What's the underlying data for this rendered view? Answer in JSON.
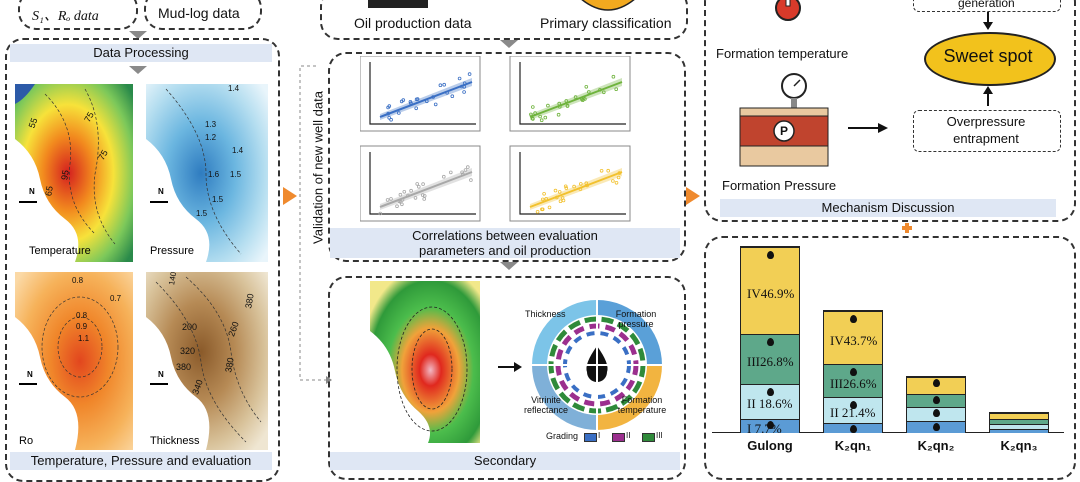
{
  "left_column": {
    "top_boxes": [
      "S₁、Rₒ data",
      "Mud-log data"
    ],
    "processing_label": "Data Processing",
    "maps": [
      {
        "id": "temperature",
        "label": "Temperature",
        "contour_labels": [
          "55",
          "75",
          "75",
          "65",
          "95"
        ]
      },
      {
        "id": "pressure",
        "label": "Pressure",
        "contour_labels": [
          "1.4",
          "1.3",
          "1.2",
          "1.4",
          "1.6",
          "1.5",
          "1.5",
          "1.5"
        ]
      },
      {
        "id": "ro",
        "label": "Ro",
        "contour_labels": [
          "0.8",
          "0.7",
          "0.8",
          "0.9",
          "1.1"
        ]
      },
      {
        "id": "thickness",
        "label": "Thickness",
        "contour_labels": [
          "140",
          "200",
          "260",
          "320",
          "380",
          "380",
          "340",
          "380"
        ]
      }
    ],
    "bottom_caption": "Temperature, Pressure and evaluation"
  },
  "validation_label": "Validation of new well data",
  "middle_column": {
    "top_labels": [
      "Oil production data",
      "Primary classification"
    ],
    "correlation_caption": [
      "Correlations between evaluation",
      "parameters and oil production"
    ],
    "panel_colors": [
      "#3a6fc4",
      "#6fb33d",
      "#a8a8a8",
      "#f2c12e"
    ],
    "wheel": {
      "labels": [
        "Thickness",
        "Formation pressure",
        "Vitrinite reflectance",
        "Formation temperature"
      ],
      "grading_label": "Grading",
      "grades": [
        {
          "label": "I",
          "color": "#3a6fc4"
        },
        {
          "label": "II",
          "color": "#9b2f8e"
        },
        {
          "label": "III",
          "color": "#2f8a3a"
        }
      ]
    },
    "bottom_caption": "Secondary"
  },
  "right_column": {
    "mechanism": {
      "formation_temperature": "Formation temperature",
      "formation_pressure": "Formation Pressure",
      "pressure_symbol": "P",
      "generation": "generation",
      "sweet_spot": "Sweet spot",
      "overpressure": [
        "Overpressure",
        "entrapment"
      ],
      "caption": "Mechanism Discussion"
    },
    "stacked_bars": {
      "categories": [
        "Gulong",
        "K₂qn₁",
        "K₂qn₂",
        "K₂qn₃"
      ],
      "colors": {
        "I": "#5b9bd5",
        "II": "#bfe6ee",
        "III": "#5ea88a",
        "IV": "#f2cf55"
      },
      "bars": [
        {
          "name": "Gulong",
          "segments": [
            {
              "class": "IV",
              "label": "IV46.9%",
              "value": 46.9
            },
            {
              "class": "III",
              "label": "III26.8%",
              "value": 26.8
            },
            {
              "class": "II",
              "label": "II 18.6%",
              "value": 18.6
            },
            {
              "class": "I",
              "label": "I   7.7%",
              "value": 7.7
            }
          ]
        },
        {
          "name": "K2qn1",
          "segments": [
            {
              "class": "IV",
              "label": "IV43.7%",
              "value": 43.7
            },
            {
              "class": "III",
              "label": "III26.6%",
              "value": 26.6
            },
            {
              "class": "II",
              "label": "II 21.4%",
              "value": 21.4
            },
            {
              "class": "I",
              "label": "",
              "value": 8.3
            }
          ]
        },
        {
          "name": "K2qn2",
          "segments": [
            {
              "class": "IV",
              "label": "",
              "value": 30
            },
            {
              "class": "III",
              "label": "",
              "value": 24
            },
            {
              "class": "II",
              "label": "",
              "value": 24
            },
            {
              "class": "I",
              "label": "",
              "value": 22
            }
          ]
        },
        {
          "name": "K2qn3",
          "segments": [
            {
              "class": "IV",
              "label": "",
              "value": 30
            },
            {
              "class": "III",
              "label": "",
              "value": 24
            },
            {
              "class": "II",
              "label": "",
              "value": 24
            },
            {
              "class": "I",
              "label": "",
              "value": 22
            }
          ]
        }
      ]
    }
  }
}
